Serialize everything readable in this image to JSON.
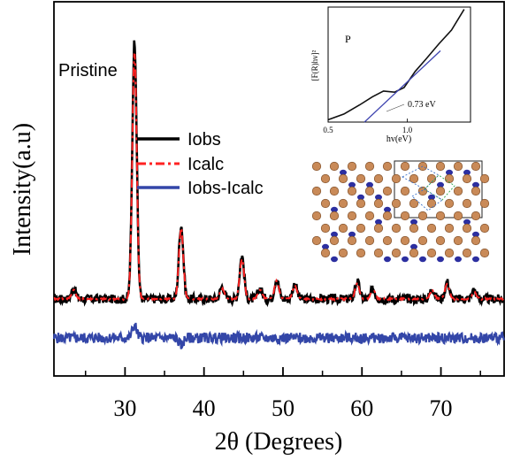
{
  "chart_data": [
    {
      "type": "line",
      "xlabel": "2θ (Degrees)",
      "ylabel": "Intensity(a.u)",
      "xlim": [
        21,
        78
      ],
      "x_ticks": [
        30,
        40,
        50,
        60,
        70
      ],
      "x_tick_labels": [
        "30",
        "40",
        "50",
        "60",
        "70"
      ],
      "grid": false,
      "legend_position": "center-right",
      "annotation": "Pristine",
      "colors": {
        "Iobs": "#000000",
        "Icalc": "#ff2222",
        "Iobs-Icalc": "#3346a8"
      },
      "series": [
        {
          "name": "Iobs",
          "baseline": 0,
          "x": [
            23.5,
            31.2,
            37.1,
            42.3,
            44.8,
            47.1,
            49.2,
            51.5,
            59.4,
            61.4,
            68.9,
            70.8,
            74.2
          ],
          "values": [
            12,
            292,
            84,
            14,
            49,
            12,
            23,
            17,
            20,
            11,
            12,
            19,
            10
          ]
        },
        {
          "name": "Icalc",
          "baseline": 0,
          "x": [
            23.5,
            31.2,
            37.1,
            42.3,
            44.8,
            47.1,
            49.2,
            51.5,
            59.4,
            61.4,
            68.9,
            70.8,
            74.2
          ],
          "values": [
            10,
            280,
            80,
            12,
            45,
            10,
            20,
            15,
            18,
            10,
            10,
            17,
            8
          ]
        },
        {
          "name": "Iobs-Icalc",
          "baseline": -44,
          "x": [
            31.2,
            37.1
          ],
          "values": [
            14,
            -8
          ]
        }
      ]
    },
    {
      "type": "line",
      "panel": "P",
      "xlabel": "hv(eV)",
      "ylabel": "[F(R)hv]²",
      "xlim": [
        0.5,
        1.4
      ],
      "x_ticks": [
        0.5,
        1.0
      ],
      "x_tick_labels": [
        "0.5",
        "1.0"
      ],
      "annotation": "0.73 eV",
      "series": [
        {
          "name": "",
          "color": "#111111",
          "x": [
            0.5,
            0.6,
            0.7,
            0.78,
            0.85,
            0.92,
            0.98,
            1.05,
            1.12,
            1.2,
            1.28,
            1.36
          ],
          "values": [
            0.02,
            0.07,
            0.15,
            0.22,
            0.27,
            0.26,
            0.3,
            0.44,
            0.55,
            0.68,
            0.8,
            0.98
          ]
        },
        {
          "name": "",
          "color": "#3f45b0",
          "x": [
            0.73,
            1.21
          ],
          "values": [
            0.0,
            0.62
          ]
        }
      ]
    }
  ]
}
